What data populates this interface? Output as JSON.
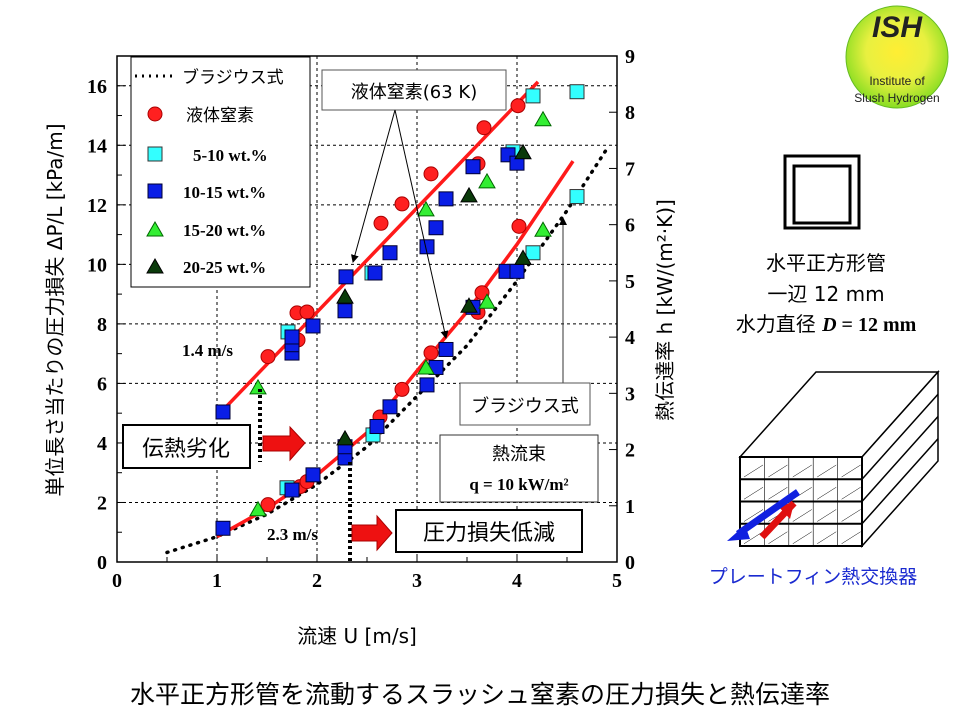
{
  "title": "水平正方形管を流動するスラッシュ窒素の圧力損失と熱伝達率",
  "logo": {
    "text": "ISH",
    "line1": "Institute of",
    "line2": "Slush Hydrogen"
  },
  "tube": {
    "line1": "水平正方形管",
    "line2": "一辺 12 mm",
    "line3_prefix": "水力直径 ",
    "line3_var": "D",
    "line3_suffix": " = 12 mm"
  },
  "hx_label": "プレートフィン熱交換器",
  "annotations": {
    "ln2_box": "液体窒素(63 K)",
    "blasius_box": "ブラジウス式",
    "heatflux_title": "熱流束",
    "heatflux_value": "q = 10 kW/m²",
    "degradation": "伝熱劣化",
    "reduction": "圧力損失低減",
    "v1": "1.4 m/s",
    "v2": "2.3 m/s"
  },
  "colors": {
    "fit": "#ff1a1a",
    "ln2": "#ff2020",
    "c510": "#33ffff",
    "c1015": "#0a1ee6",
    "c1520": "#33ee33",
    "c2025": "#0a3a0a"
  },
  "chart_data": {
    "type": "scatter",
    "xlabel": "流速 U [m/s]",
    "ylabel_left": "単位長さ当たりの圧力損失 ΔP/L [kPa/m]",
    "ylabel_right": "熱伝達率 h [kW/(m²·K)]",
    "xlim": [
      0,
      5
    ],
    "ylim_left": [
      0,
      17
    ],
    "ylim_right": [
      0,
      9
    ],
    "x_ticks": [
      "0",
      "1",
      "2",
      "3",
      "4",
      "5"
    ],
    "y_left_ticks": [
      "0",
      "2",
      "4",
      "6",
      "8",
      "10",
      "12",
      "14",
      "16"
    ],
    "y_right_ticks": [
      "0",
      "1",
      "2",
      "3",
      "4",
      "5",
      "6",
      "7",
      "8",
      "9"
    ],
    "grid": true,
    "legend_position": "top-left",
    "legend": [
      "ブラジウス式",
      "液体窒素",
      "5-10 wt.%",
      "10-15 wt.%",
      "15-20 wt.%",
      "20-25 wt.%"
    ],
    "pressure_drop": [
      {
        "name": "液体窒素",
        "marker": "circle",
        "points": [
          [
            1.51,
            6.9
          ],
          [
            1.8,
            8.37
          ],
          [
            1.9,
            8.4
          ],
          [
            1.81,
            7.46
          ],
          [
            2.64,
            11.38
          ],
          [
            2.85,
            12.03
          ],
          [
            3.14,
            13.04
          ],
          [
            3.61,
            13.38
          ],
          [
            3.67,
            14.59
          ],
          [
            4.01,
            15.33
          ]
        ]
      },
      {
        "name": "5-10 wt.%",
        "marker": "square-cyan",
        "points": [
          [
            1.71,
            7.73
          ],
          [
            2.55,
            9.71
          ],
          [
            3.96,
            13.78
          ],
          [
            4.16,
            15.66
          ],
          [
            4.6,
            15.8
          ]
        ]
      },
      {
        "name": "10-15 wt.%",
        "marker": "square-blue",
        "points": [
          [
            1.06,
            5.04
          ],
          [
            1.75,
            7.02
          ],
          [
            1.75,
            7.3
          ],
          [
            1.75,
            7.56
          ],
          [
            1.96,
            7.93
          ],
          [
            2.28,
            8.44
          ],
          [
            2.29,
            9.58
          ],
          [
            2.58,
            9.71
          ],
          [
            2.73,
            10.39
          ],
          [
            3.1,
            10.59
          ],
          [
            3.19,
            11.23
          ],
          [
            3.29,
            12.2
          ],
          [
            3.56,
            13.28
          ],
          [
            3.91,
            13.68
          ],
          [
            4.0,
            13.4
          ]
        ]
      },
      {
        "name": "15-20 wt.%",
        "marker": "triangle-light",
        "points": [
          [
            1.41,
            5.85
          ],
          [
            3.09,
            11.83
          ],
          [
            3.7,
            12.77
          ],
          [
            4.26,
            14.86
          ]
        ]
      },
      {
        "name": "20-25 wt.%",
        "marker": "triangle-dark",
        "points": [
          [
            2.28,
            8.9
          ],
          [
            3.52,
            12.3
          ],
          [
            4.06,
            13.75
          ]
        ]
      }
    ],
    "heat_transfer": [
      {
        "name": "液体窒素",
        "marker": "circle",
        "points": [
          [
            1.51,
            1.02
          ],
          [
            1.83,
            1.34
          ],
          [
            1.9,
            1.43
          ],
          [
            2.63,
            2.58
          ],
          [
            2.85,
            3.07
          ],
          [
            3.14,
            3.72
          ],
          [
            3.61,
            4.44
          ],
          [
            3.65,
            4.79
          ],
          [
            4.02,
            5.97
          ]
        ]
      },
      {
        "name": "5-10 wt.%",
        "marker": "square-cyan",
        "points": [
          [
            1.7,
            1.32
          ],
          [
            2.56,
            2.26
          ],
          [
            4.16,
            5.5
          ],
          [
            4.6,
            6.5
          ]
        ]
      },
      {
        "name": "10-15 wt.%",
        "marker": "square-blue",
        "points": [
          [
            1.06,
            0.6
          ],
          [
            1.75,
            1.28
          ],
          [
            1.96,
            1.55
          ],
          [
            2.28,
            1.85
          ],
          [
            2.28,
            2.05
          ],
          [
            2.6,
            2.41
          ],
          [
            2.73,
            2.76
          ],
          [
            3.1,
            3.15
          ],
          [
            3.19,
            3.46
          ],
          [
            3.29,
            3.78
          ],
          [
            3.56,
            4.53
          ],
          [
            3.89,
            5.17
          ],
          [
            4.0,
            5.17
          ]
        ]
      },
      {
        "name": "15-20 wt.%",
        "marker": "triangle-light",
        "points": [
          [
            1.41,
            0.93
          ],
          [
            3.09,
            3.45
          ],
          [
            3.7,
            4.62
          ],
          [
            4.26,
            5.9
          ]
        ]
      },
      {
        "name": "20-25 wt.%",
        "marker": "triangle-dark",
        "points": [
          [
            2.28,
            2.19
          ],
          [
            3.52,
            4.55
          ],
          [
            4.06,
            5.4
          ]
        ]
      }
    ],
    "fit_pressure_left": [
      [
        1.03,
        5.0
      ],
      [
        4.21,
        16.13
      ]
    ],
    "fit_heat_right": [
      [
        1.0,
        0.45
      ],
      [
        1.5,
        0.95
      ],
      [
        2.0,
        1.55
      ],
      [
        2.5,
        2.3
      ],
      [
        3.0,
        3.4
      ],
      [
        3.5,
        4.45
      ],
      [
        4.0,
        5.65
      ],
      [
        4.56,
        7.13
      ]
    ],
    "blasius_right": [
      [
        0.5,
        0.17
      ],
      [
        1.0,
        0.45
      ],
      [
        1.5,
        0.85
      ],
      [
        2.0,
        1.38
      ],
      [
        2.5,
        2.05
      ],
      [
        3.0,
        2.95
      ],
      [
        3.5,
        3.85
      ],
      [
        4.0,
        5.0
      ],
      [
        4.5,
        6.25
      ],
      [
        4.91,
        7.38
      ]
    ]
  }
}
